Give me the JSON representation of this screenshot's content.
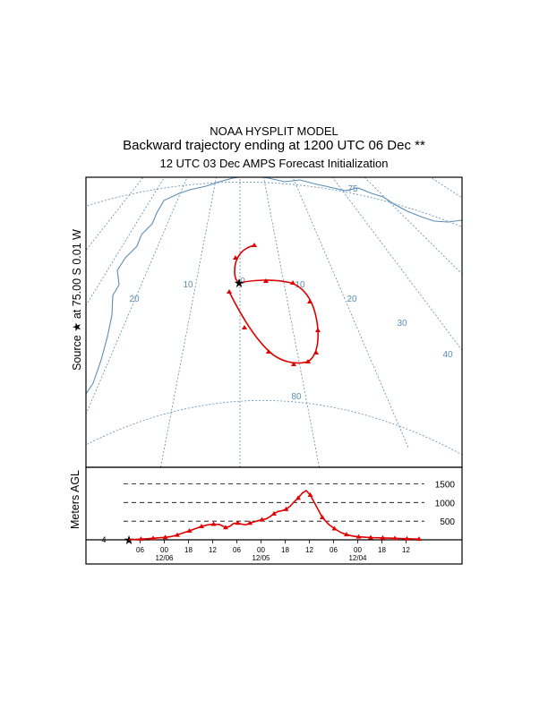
{
  "header": {
    "model": "NOAA HYSPLIT MODEL",
    "subtitle": "Backward trajectory ending at 1200 UTC 06 Dec **",
    "init": "12 UTC 03 Dec    AMPS  Forecast Initialization"
  },
  "map": {
    "side_label": "Source ★ at   75.00 S    0.01 W",
    "meridian_labels": [
      "20",
      "10",
      "0",
      "10",
      "20",
      "30",
      "40"
    ],
    "latitude_labels": [
      "75",
      "80"
    ],
    "source": {
      "lat": -75.0,
      "lon": -0.01
    },
    "colors": {
      "coast": "#5b8db5",
      "grid": "#5b8db5",
      "trajectory": "#e00000"
    }
  },
  "chart_data": {
    "type": "line",
    "title": "",
    "xlabel": "",
    "ylabel": "Meters AGL",
    "x_tick_labels": [
      "06",
      "00",
      "18",
      "12",
      "06",
      "00",
      "18",
      "12",
      "06",
      "00",
      "18",
      "12"
    ],
    "date_labels": [
      "12/06",
      "12/05",
      "12/04"
    ],
    "reference_levels": [
      500,
      1000,
      1500
    ],
    "start_height_label": "4",
    "ylim": [
      0,
      1800
    ],
    "series": [
      {
        "name": "",
        "x_hours_back": [
          0,
          3,
          6,
          9,
          12,
          15,
          18,
          21,
          24,
          27,
          30,
          33,
          36,
          39,
          42,
          45,
          48,
          50,
          52,
          54,
          56,
          58,
          60,
          62,
          64,
          66,
          68,
          70,
          72,
          74,
          76,
          78,
          80,
          82,
          84,
          86,
          88,
          90,
          92,
          94,
          96,
          99,
          102,
          105,
          108,
          111,
          114,
          117,
          120,
          123,
          126,
          129,
          132,
          135,
          138,
          141,
          144
        ],
        "values": [
          4,
          10,
          20,
          30,
          40,
          55,
          65,
          90,
          130,
          190,
          240,
          300,
          360,
          400,
          420,
          410,
          330,
          360,
          440,
          450,
          420,
          400,
          450,
          480,
          510,
          540,
          560,
          620,
          700,
          760,
          780,
          820,
          900,
          1020,
          1120,
          1250,
          1320,
          1200,
          1000,
          800,
          600,
          420,
          300,
          200,
          140,
          100,
          80,
          70,
          60,
          55,
          50,
          45,
          40,
          35,
          30,
          25,
          20
        ]
      }
    ],
    "marker_every_hours": 6
  }
}
